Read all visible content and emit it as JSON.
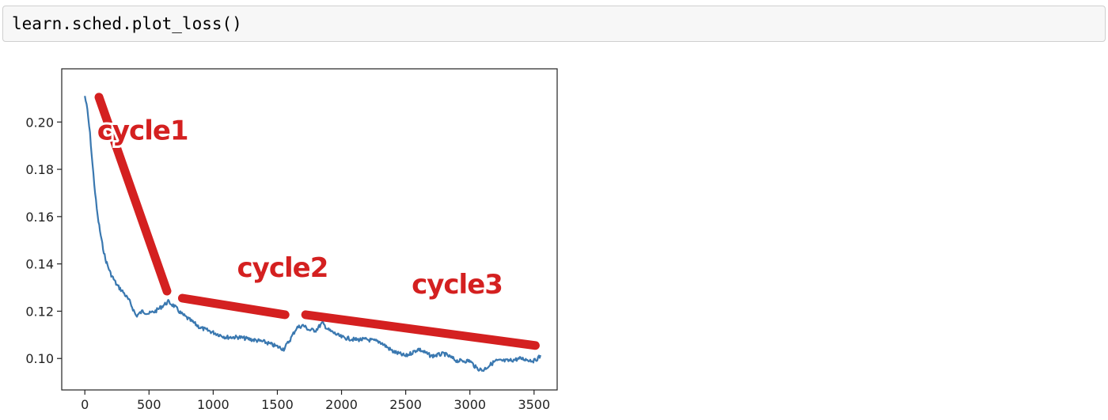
{
  "code_cell": {
    "source": "learn.sched.plot_loss()"
  },
  "chart_data": {
    "type": "line",
    "title": "",
    "xlabel": "",
    "ylabel": "",
    "xlim": [
      -180,
      3680
    ],
    "ylim": [
      0.0867,
      0.2225
    ],
    "x_ticks": [
      0,
      500,
      1000,
      1500,
      2000,
      2500,
      3000,
      3500
    ],
    "y_ticks": [
      0.1,
      0.12,
      0.14,
      0.16,
      0.18,
      0.2
    ],
    "x_tick_labels": [
      "0",
      "500",
      "1000",
      "1500",
      "2000",
      "2500",
      "3000",
      "3500"
    ],
    "y_tick_labels": [
      "0.10",
      "0.12",
      "0.14",
      "0.16",
      "0.18",
      "0.20"
    ],
    "grid": false,
    "series": [
      {
        "color": "#3a78b0",
        "x": [
          0,
          20,
          40,
          60,
          80,
          100,
          130,
          160,
          200,
          250,
          300,
          350,
          400,
          450,
          500,
          550,
          600,
          650,
          700,
          750,
          800,
          900,
          1000,
          1100,
          1200,
          1300,
          1400,
          1500,
          1550,
          1600,
          1650,
          1700,
          1750,
          1800,
          1850,
          1900,
          2000,
          2100,
          2200,
          2300,
          2400,
          2500,
          2600,
          2700,
          2800,
          2900,
          3000,
          3050,
          3100,
          3150,
          3200,
          3300,
          3400,
          3500,
          3550
        ],
        "y": [
          0.211,
          0.205,
          0.195,
          0.182,
          0.17,
          0.16,
          0.15,
          0.142,
          0.136,
          0.131,
          0.128,
          0.124,
          0.118,
          0.12,
          0.119,
          0.12,
          0.122,
          0.124,
          0.122,
          0.119,
          0.117,
          0.113,
          0.111,
          0.109,
          0.109,
          0.108,
          0.107,
          0.105,
          0.104,
          0.108,
          0.113,
          0.114,
          0.112,
          0.112,
          0.115,
          0.112,
          0.109,
          0.108,
          0.108,
          0.107,
          0.103,
          0.101,
          0.104,
          0.101,
          0.102,
          0.099,
          0.099,
          0.096,
          0.095,
          0.097,
          0.099,
          0.099,
          0.1,
          0.099,
          0.101
        ]
      }
    ],
    "annotations": [
      {
        "text": "cycle1",
        "color": "#d42020",
        "line": {
          "from": [
            110,
            0.2105
          ],
          "to": [
            640,
            0.1285
          ]
        },
        "text_at": [
          450,
          0.1925
        ]
      },
      {
        "text": "cycle2",
        "color": "#d42020",
        "line": {
          "from": [
            760,
            0.1255
          ],
          "to": [
            1560,
            0.1185
          ]
        },
        "text_at": [
          1540,
          0.1345
        ]
      },
      {
        "text": "cycle3",
        "color": "#d42020",
        "line": {
          "from": [
            1720,
            0.1185
          ],
          "to": [
            3510,
            0.1055
          ]
        },
        "text_at": [
          2900,
          0.1275
        ]
      }
    ]
  }
}
